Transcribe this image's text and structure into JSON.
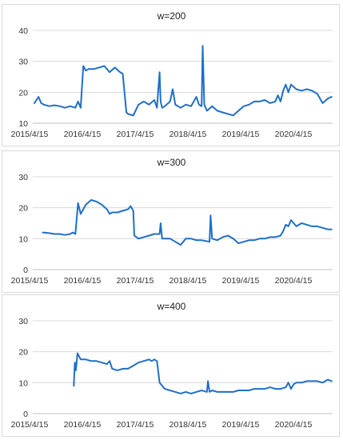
{
  "chart_data": [
    {
      "type": "line",
      "title": "w=200",
      "xlabel": "",
      "ylabel": "",
      "ylim": [
        10,
        40
      ],
      "yticks": [
        10,
        20,
        30,
        40
      ],
      "x_tick_labels": [
        "2015/4/15",
        "2016/4/15",
        "2017/4/15",
        "2018/4/15",
        "2019/4/15",
        "2020/4/15"
      ],
      "xlim": [
        2015.29,
        2020.99
      ],
      "grid": true,
      "series": [
        {
          "color": "#1f6fc6",
          "x": [
            2015.32,
            2015.4,
            2015.45,
            2015.5,
            2015.6,
            2015.7,
            2015.8,
            2015.9,
            2016.0,
            2016.1,
            2016.15,
            2016.2,
            2016.25,
            2016.3,
            2016.35,
            2016.45,
            2016.55,
            2016.65,
            2016.75,
            2016.85,
            2016.95,
            2017.0,
            2017.05,
            2017.07,
            2017.1,
            2017.2,
            2017.3,
            2017.4,
            2017.5,
            2017.6,
            2017.65,
            2017.7,
            2017.72,
            2017.75,
            2017.8,
            2017.9,
            2017.95,
            2018.0,
            2018.05,
            2018.1,
            2018.2,
            2018.3,
            2018.4,
            2018.45,
            2018.5,
            2018.52,
            2018.55,
            2018.6,
            2018.7,
            2018.8,
            2018.9,
            2019.0,
            2019.1,
            2019.2,
            2019.3,
            2019.4,
            2019.5,
            2019.6,
            2019.7,
            2019.8,
            2019.9,
            2019.95,
            2020.0,
            2020.05,
            2020.1,
            2020.15,
            2020.2,
            2020.3,
            2020.4,
            2020.5,
            2020.6,
            2020.7,
            2020.8,
            2020.9,
            2020.97
          ],
          "y": [
            16.5,
            18.5,
            16.5,
            16.0,
            15.5,
            15.8,
            15.5,
            15.0,
            15.5,
            15.0,
            17.0,
            15.0,
            28.5,
            27.0,
            27.5,
            27.5,
            28.0,
            28.5,
            26.5,
            28.0,
            26.5,
            26.0,
            17.0,
            13.5,
            13.0,
            12.5,
            16.0,
            17.0,
            16.0,
            17.5,
            15.0,
            26.5,
            17.0,
            15.0,
            15.5,
            17.0,
            21.0,
            16.0,
            15.5,
            15.0,
            16.0,
            15.5,
            18.5,
            16.0,
            15.5,
            35.0,
            16.0,
            14.0,
            15.5,
            14.0,
            13.5,
            13.0,
            12.5,
            14.0,
            15.5,
            16.0,
            17.0,
            17.0,
            17.5,
            16.5,
            17.0,
            19.0,
            17.0,
            20.5,
            22.5,
            20.0,
            22.5,
            21.0,
            20.5,
            21.0,
            20.5,
            19.5,
            16.5,
            18.0,
            18.5
          ]
        }
      ]
    },
    {
      "type": "line",
      "title": "w=300",
      "xlabel": "",
      "ylabel": "",
      "ylim": [
        0,
        30
      ],
      "yticks": [
        0,
        10,
        20,
        30
      ],
      "x_tick_labels": [
        "2015/4/15",
        "2016/4/15",
        "2017/4/15",
        "2018/4/15",
        "2019/4/15",
        "2020/4/15"
      ],
      "xlim": [
        2015.29,
        2020.99
      ],
      "grid": true,
      "series": [
        {
          "color": "#1f6fc6",
          "x": [
            2015.48,
            2015.6,
            2015.7,
            2015.8,
            2015.9,
            2016.0,
            2016.05,
            2016.1,
            2016.15,
            2016.2,
            2016.3,
            2016.4,
            2016.5,
            2016.6,
            2016.7,
            2016.75,
            2016.8,
            2016.9,
            2017.0,
            2017.1,
            2017.15,
            2017.2,
            2017.22,
            2017.3,
            2017.4,
            2017.5,
            2017.6,
            2017.7,
            2017.72,
            2017.75,
            2017.8,
            2017.9,
            2018.0,
            2018.1,
            2018.2,
            2018.3,
            2018.4,
            2018.5,
            2018.65,
            2018.67,
            2018.7,
            2018.8,
            2018.9,
            2019.0,
            2019.1,
            2019.2,
            2019.3,
            2019.4,
            2019.5,
            2019.6,
            2019.7,
            2019.8,
            2019.9,
            2020.0,
            2020.05,
            2020.1,
            2020.15,
            2020.2,
            2020.3,
            2020.4,
            2020.5,
            2020.6,
            2020.7,
            2020.8,
            2020.9,
            2020.97
          ],
          "y": [
            12.0,
            11.8,
            11.5,
            11.5,
            11.2,
            11.5,
            12.0,
            11.5,
            21.5,
            18.0,
            21.0,
            22.5,
            22.0,
            21.0,
            19.5,
            18.0,
            18.5,
            18.5,
            19.0,
            19.5,
            20.5,
            19.0,
            11.0,
            10.0,
            10.5,
            11.0,
            11.5,
            11.5,
            15.0,
            10.0,
            10.0,
            10.0,
            9.0,
            8.0,
            10.0,
            10.0,
            9.5,
            9.5,
            9.0,
            17.5,
            10.0,
            9.5,
            10.5,
            11.0,
            10.0,
            8.5,
            9.0,
            9.5,
            9.5,
            10.0,
            10.0,
            10.5,
            10.5,
            11.0,
            12.5,
            14.5,
            14.0,
            16.0,
            14.0,
            15.0,
            14.5,
            14.0,
            14.0,
            13.5,
            13.0,
            13.0
          ]
        }
      ]
    },
    {
      "type": "line",
      "title": "w=400",
      "xlabel": "",
      "ylabel": "",
      "ylim": [
        0,
        30
      ],
      "yticks": [
        0,
        10,
        20,
        30
      ],
      "x_tick_labels": [
        "2015/4/15",
        "2016/4/15",
        "2017/4/15",
        "2018/4/15",
        "2019/4/15",
        "2020/4/15"
      ],
      "xlim": [
        2015.29,
        2020.99
      ],
      "grid": true,
      "series": [
        {
          "color": "#1f6fc6",
          "x": [
            2016.07,
            2016.09,
            2016.11,
            2016.14,
            2016.2,
            2016.3,
            2016.4,
            2016.5,
            2016.6,
            2016.7,
            2016.75,
            2016.8,
            2016.9,
            2017.0,
            2017.1,
            2017.2,
            2017.3,
            2017.4,
            2017.5,
            2017.55,
            2017.6,
            2017.65,
            2017.7,
            2017.8,
            2017.9,
            2018.0,
            2018.1,
            2018.2,
            2018.3,
            2018.4,
            2018.5,
            2018.6,
            2018.62,
            2018.65,
            2018.7,
            2018.8,
            2018.9,
            2019.0,
            2019.1,
            2019.2,
            2019.3,
            2019.4,
            2019.5,
            2019.6,
            2019.7,
            2019.8,
            2019.9,
            2020.0,
            2020.1,
            2020.15,
            2020.2,
            2020.25,
            2020.3,
            2020.4,
            2020.5,
            2020.6,
            2020.7,
            2020.8,
            2020.9,
            2020.97
          ],
          "y": [
            9.0,
            16.5,
            14.0,
            19.5,
            17.5,
            17.5,
            17.0,
            17.0,
            16.5,
            16.0,
            17.0,
            14.5,
            14.0,
            14.5,
            14.5,
            15.5,
            16.5,
            17.0,
            17.5,
            17.0,
            17.5,
            17.0,
            10.0,
            8.0,
            7.5,
            7.0,
            6.5,
            7.0,
            6.5,
            7.0,
            7.5,
            7.0,
            10.5,
            7.0,
            7.5,
            7.0,
            7.0,
            7.0,
            7.0,
            7.5,
            7.5,
            7.5,
            8.0,
            8.0,
            8.0,
            8.5,
            8.0,
            8.0,
            8.5,
            10.0,
            8.0,
            9.5,
            10.0,
            10.0,
            10.5,
            10.5,
            10.5,
            10.0,
            11.0,
            10.5
          ]
        }
      ]
    }
  ]
}
